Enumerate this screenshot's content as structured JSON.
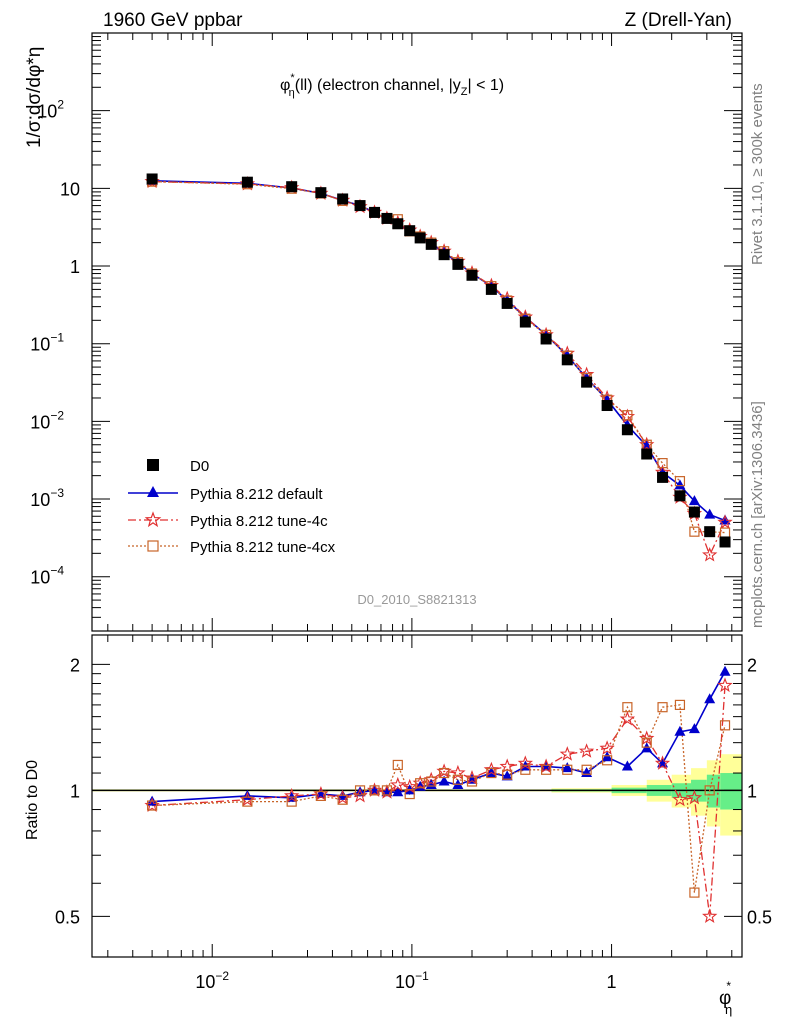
{
  "header": {
    "left_title": "1960 GeV ppbar",
    "right_title": "Z (Drell-Yan)"
  },
  "side_text": {
    "rivet": "Rivet 3.1.10, ≥ 300k events",
    "mcplots": "mcplots.cern.ch [arXiv:1306.3436]"
  },
  "chart_data": [
    {
      "type": "scatter",
      "title": "φ*η(ll) (electron channel, |yZ| < 1)",
      "title_parts": {
        "phi": "φ",
        "sup": "*",
        "sub": "η",
        "mid": "(ll) (electron channel, |y",
        "zsub": "Z",
        "end": "| < 1)"
      },
      "analysis_id": "D0_2010_S8821313",
      "ylabel": "1/σ;dσ/dφ*η",
      "xscale": "log",
      "yscale": "log",
      "xlim": [
        0.0025,
        4.5
      ],
      "ylim": [
        2e-05,
        1000
      ],
      "x_ticks": [
        {
          "v": 0.01,
          "base": "10",
          "exp": "−2"
        },
        {
          "v": 0.1,
          "base": "10",
          "exp": "−1"
        },
        {
          "v": 1,
          "base": "1",
          "exp": ""
        }
      ],
      "y_ticks": [
        {
          "v": 100,
          "base": "10",
          "exp": "2"
        },
        {
          "v": 10,
          "base": "10",
          "exp": ""
        },
        {
          "v": 1,
          "base": "1",
          "exp": ""
        },
        {
          "v": 0.1,
          "base": "10",
          "exp": "−1"
        },
        {
          "v": 0.01,
          "base": "10",
          "exp": "−2"
        },
        {
          "v": 0.001,
          "base": "10",
          "exp": "−3"
        },
        {
          "v": 0.0001,
          "base": "10",
          "exp": "−4"
        }
      ],
      "x": [
        0.005,
        0.015,
        0.025,
        0.035,
        0.045,
        0.055,
        0.065,
        0.075,
        0.085,
        0.0975,
        0.11,
        0.125,
        0.145,
        0.17,
        0.2,
        0.25,
        0.3,
        0.37,
        0.47,
        0.6,
        0.75,
        0.95,
        1.2,
        1.5,
        1.8,
        2.2,
        2.6,
        3.1,
        3.7
      ],
      "legend_position": "lower-left",
      "series": [
        {
          "name": "D0",
          "marker": "square-filled",
          "color": "#000000",
          "values": [
            13.2,
            12.0,
            10.5,
            8.8,
            7.3,
            6.0,
            4.9,
            4.1,
            3.5,
            2.85,
            2.3,
            1.9,
            1.4,
            1.05,
            0.76,
            0.5,
            0.33,
            0.19,
            0.115,
            0.062,
            0.032,
            0.016,
            0.0078,
            0.0038,
            0.0019,
            0.0011,
            0.00068,
            0.00038,
            0.00028
          ]
        },
        {
          "name": "Pythia 8.212 default",
          "marker": "triangle",
          "color": "#0000cc",
          "line": "solid",
          "values": [
            12.5,
            11.6,
            10.1,
            8.6,
            7.0,
            6.0,
            4.9,
            4.0,
            3.5,
            2.8,
            2.35,
            1.95,
            1.5,
            1.1,
            0.8,
            0.55,
            0.36,
            0.22,
            0.13,
            0.07,
            0.036,
            0.019,
            0.0089,
            0.0048,
            0.0022,
            0.0015,
            0.00094,
            0.00063,
            0.00053
          ]
        },
        {
          "name": "Pythia 8.212 tune-4c",
          "marker": "star",
          "color": "#e03030",
          "line": "dashdot",
          "values": [
            12.2,
            11.4,
            10.2,
            8.6,
            7.0,
            5.8,
            4.9,
            4.1,
            3.6,
            2.9,
            2.4,
            2.0,
            1.55,
            1.15,
            0.81,
            0.56,
            0.38,
            0.22,
            0.13,
            0.075,
            0.04,
            0.02,
            0.0115,
            0.005,
            0.0022,
            0.00105,
            0.00065,
            0.00019,
            0.0005
          ]
        },
        {
          "name": "Pythia 8.212 tune-4cx",
          "marker": "square-open",
          "color": "#c86428",
          "line": "dotted",
          "values": [
            12.2,
            11.3,
            9.9,
            8.6,
            6.9,
            6.0,
            4.9,
            4.1,
            4.0,
            2.8,
            2.4,
            2.0,
            1.55,
            1.12,
            0.8,
            0.55,
            0.36,
            0.21,
            0.13,
            0.07,
            0.036,
            0.019,
            0.012,
            0.005,
            0.0029,
            0.0017,
            0.00038,
            0.00038,
            0.00037
          ]
        }
      ]
    },
    {
      "type": "scatter",
      "ylabel": "Ratio to D0",
      "xlabel": "φ*η",
      "xlabel_parts": {
        "phi": "φ",
        "sup": "*",
        "sub": "η"
      },
      "xscale": "log",
      "yscale": "log",
      "xlim": [
        0.0025,
        4.5
      ],
      "ylim": [
        0.4,
        2.35
      ],
      "y_ticks": [
        {
          "v": 0.5,
          "label": "0.5"
        },
        {
          "v": 1,
          "label": "1"
        },
        {
          "v": 2,
          "label": "2"
        }
      ],
      "bands": {
        "x_edges": [
          0.0025,
          0.5,
          1,
          1.5,
          2,
          2.5,
          3,
          3.5,
          4.5
        ],
        "green_half": [
          0.003,
          0.006,
          0.015,
          0.03,
          0.04,
          0.06,
          0.09,
          0.1
        ],
        "yellow_half": [
          0.006,
          0.012,
          0.03,
          0.06,
          0.09,
          0.13,
          0.18,
          0.22
        ]
      },
      "series": [
        {
          "name": "Pythia 8.212 default",
          "color": "#0000cc",
          "values": [
            0.94,
            0.97,
            0.96,
            0.98,
            0.97,
            0.99,
            1.0,
            0.99,
            0.99,
            1.0,
            1.02,
            1.03,
            1.05,
            1.03,
            1.06,
            1.1,
            1.08,
            1.14,
            1.14,
            1.13,
            1.1,
            1.2,
            1.14,
            1.26,
            1.16,
            1.38,
            1.4,
            1.65,
            1.92
          ]
        },
        {
          "name": "Pythia 8.212 tune-4c",
          "color": "#e03030",
          "values": [
            0.92,
            0.95,
            0.97,
            0.98,
            0.96,
            0.97,
            1.0,
            0.99,
            1.03,
            1.02,
            1.04,
            1.06,
            1.11,
            1.1,
            1.07,
            1.12,
            1.14,
            1.16,
            1.14,
            1.22,
            1.24,
            1.26,
            1.48,
            1.33,
            1.16,
            0.95,
            0.96,
            0.5,
            1.78
          ]
        },
        {
          "name": "Pythia 8.212 tune-4cx",
          "color": "#c86428",
          "values": [
            0.92,
            0.94,
            0.94,
            0.97,
            0.95,
            1.0,
            1.0,
            1.0,
            1.15,
            0.98,
            1.04,
            1.05,
            1.1,
            1.06,
            1.05,
            1.1,
            1.09,
            1.12,
            1.12,
            1.12,
            1.12,
            1.18,
            1.58,
            1.3,
            1.58,
            1.6,
            0.57,
            1.0,
            1.43
          ]
        }
      ]
    }
  ]
}
